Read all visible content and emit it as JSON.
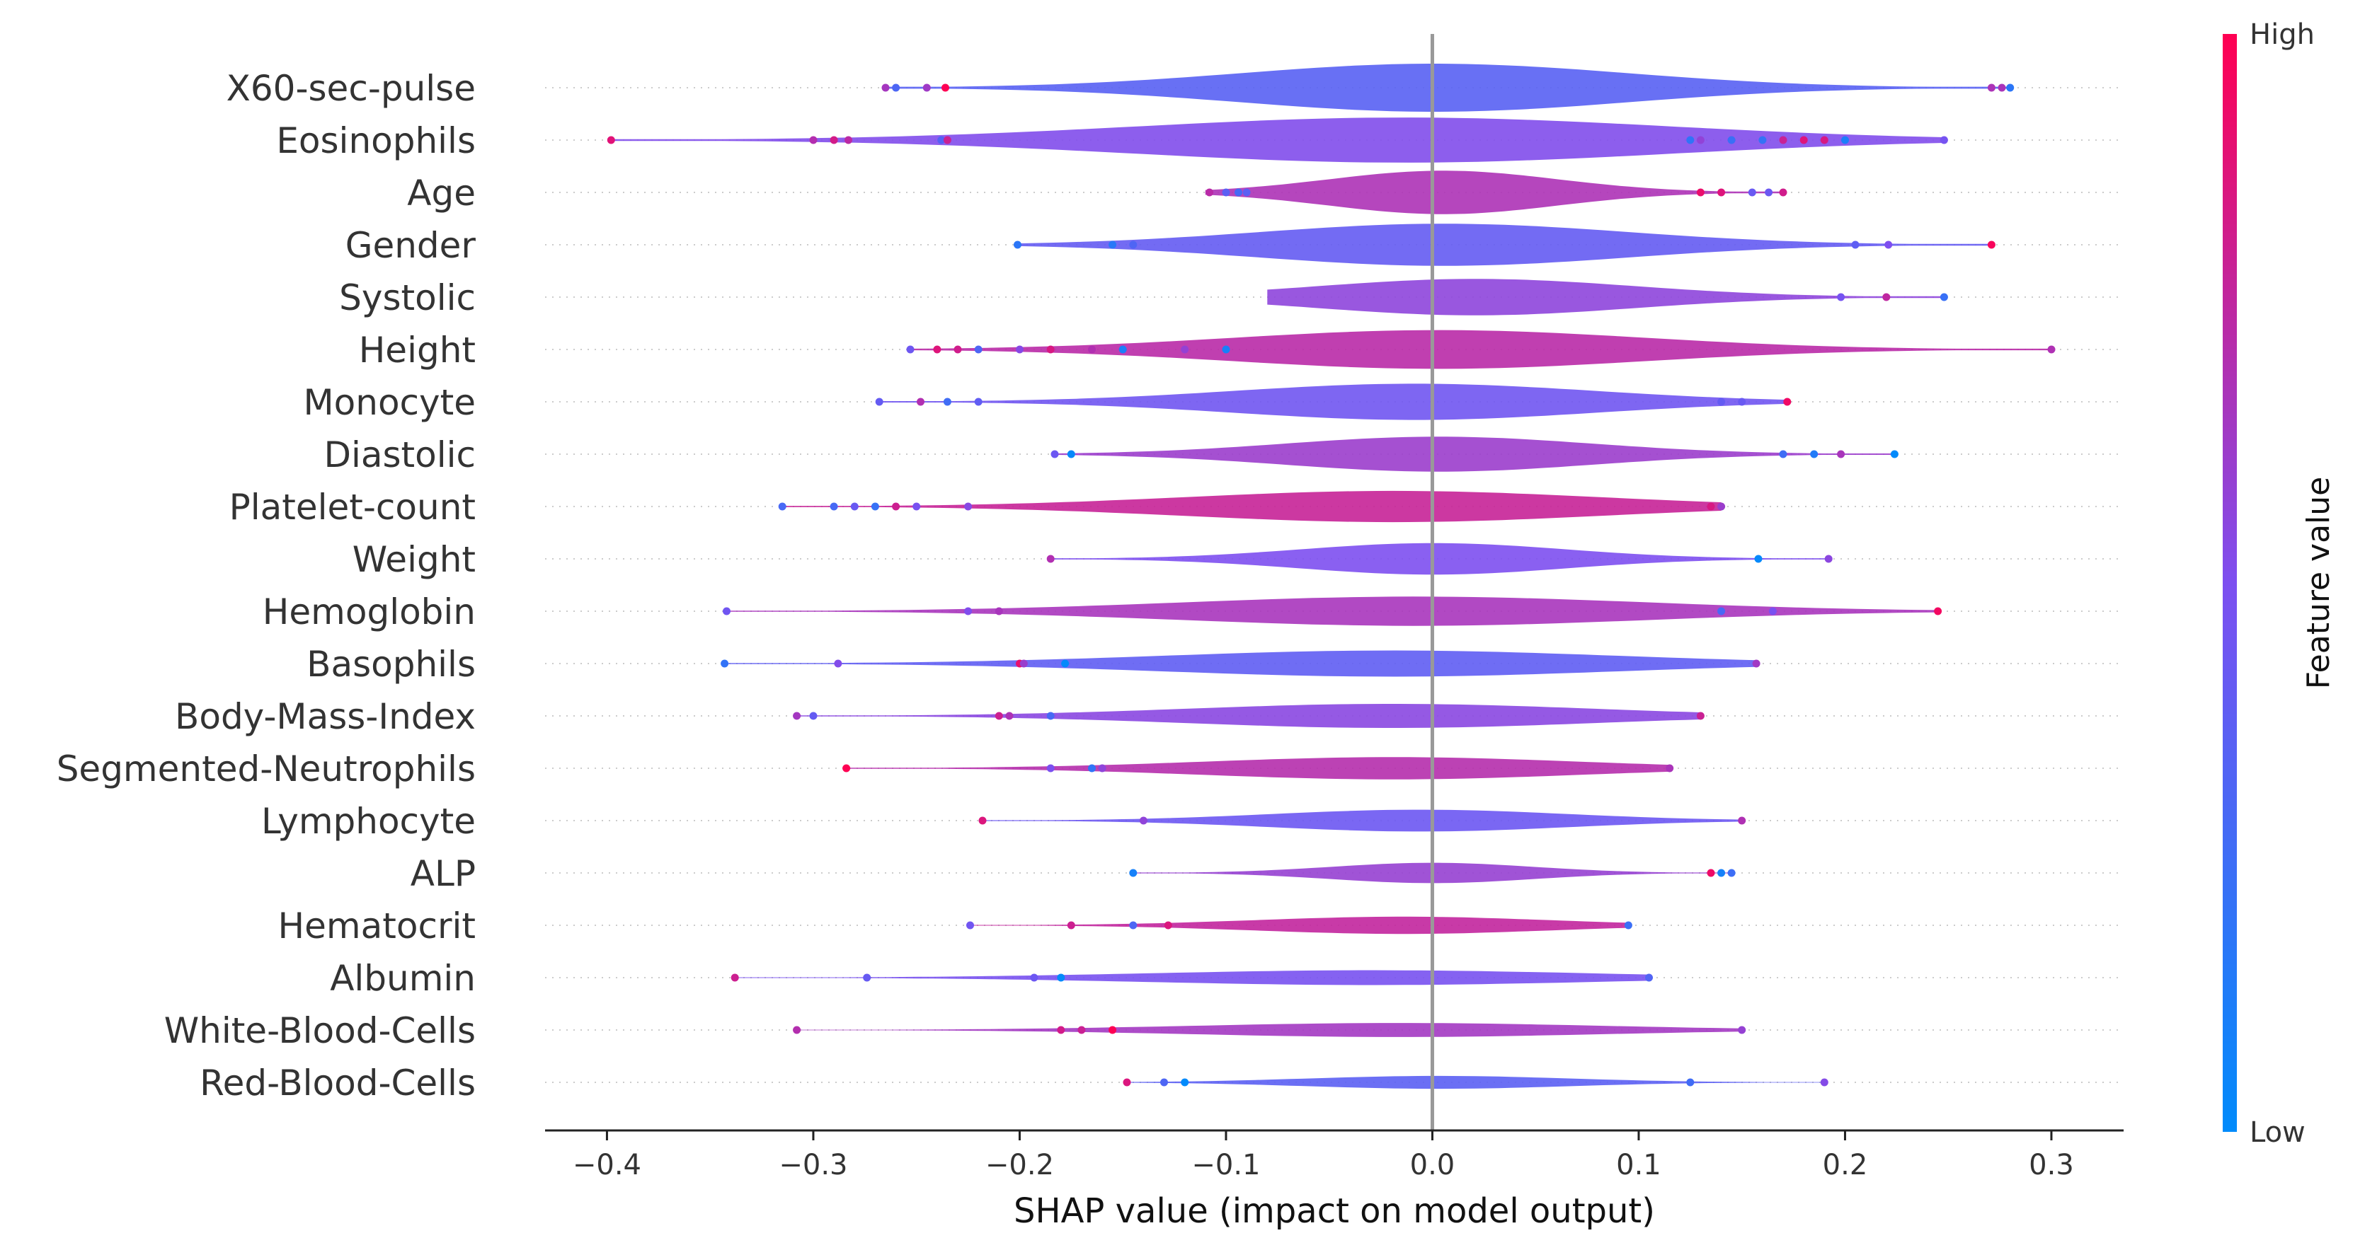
{
  "chart_data": {
    "type": "violin",
    "xlabel": "SHAP value (impact on model output)",
    "xlim": [
      -0.43,
      0.335
    ],
    "x_ticks": [
      -0.4,
      -0.3,
      -0.2,
      -0.1,
      0.0,
      0.1,
      0.2,
      0.3
    ],
    "x_tick_labels": [
      "−0.4",
      "−0.3",
      "−0.2",
      "−0.1",
      "0.0",
      "0.1",
      "0.2",
      "0.3"
    ],
    "colorbar": {
      "title": "Feature value",
      "high_label": "High",
      "low_label": "Low",
      "high_color": "#ff0052",
      "low_color": "#008bfb"
    },
    "features": [
      {
        "name": "X60-sec-pulse",
        "min": -0.265,
        "max": 0.28,
        "outliers": [
          -0.265,
          -0.26,
          -0.245,
          -0.236,
          0.271,
          0.276,
          0.28
        ]
      },
      {
        "name": "Eosinophils",
        "min": -0.398,
        "max": 0.248,
        "outliers": [
          -0.398,
          -0.3,
          -0.29,
          -0.283,
          -0.238,
          -0.235,
          0.125,
          0.13,
          0.145,
          0.16,
          0.17,
          0.18,
          0.19,
          0.2,
          0.248
        ]
      },
      {
        "name": "Age",
        "min": -0.11,
        "max": 0.17,
        "outliers": [
          -0.108,
          -0.1,
          -0.094,
          -0.09,
          0.13,
          0.14,
          0.155,
          0.163,
          0.17
        ]
      },
      {
        "name": "Gender",
        "min": -0.201,
        "max": 0.271,
        "outliers": [
          -0.201,
          -0.155,
          -0.145,
          0.205,
          0.221,
          0.271
        ]
      },
      {
        "name": "Systolic",
        "min": -0.08,
        "max": 0.248,
        "outliers": [
          0.198,
          0.22,
          0.248
        ]
      },
      {
        "name": "Height",
        "min": -0.253,
        "max": 0.3,
        "outliers": [
          -0.253,
          -0.24,
          -0.23,
          -0.22,
          -0.2,
          -0.185,
          -0.165,
          -0.15,
          -0.12,
          -0.1,
          0.3
        ]
      },
      {
        "name": "Monocyte",
        "min": -0.268,
        "max": 0.172,
        "outliers": [
          -0.268,
          -0.248,
          -0.235,
          -0.22,
          0.14,
          0.15,
          0.172
        ]
      },
      {
        "name": "Diastolic",
        "min": -0.183,
        "max": 0.224,
        "outliers": [
          -0.183,
          -0.175,
          0.17,
          0.185,
          0.198,
          0.224
        ]
      },
      {
        "name": "Platelet-count",
        "min": -0.315,
        "max": 0.14,
        "outliers": [
          -0.315,
          -0.29,
          -0.28,
          -0.27,
          -0.26,
          -0.25,
          -0.225,
          0.135,
          0.14
        ]
      },
      {
        "name": "Weight",
        "min": -0.185,
        "max": 0.192,
        "outliers": [
          -0.185,
          0.158,
          0.192
        ]
      },
      {
        "name": "Hemoglobin",
        "min": -0.342,
        "max": 0.245,
        "outliers": [
          -0.342,
          -0.225,
          -0.21,
          0.14,
          0.165,
          0.245
        ]
      },
      {
        "name": "Basophils",
        "min": -0.343,
        "max": 0.157,
        "outliers": [
          -0.343,
          -0.288,
          -0.2,
          -0.198,
          -0.178,
          0.157
        ]
      },
      {
        "name": "Body-Mass-Index",
        "min": -0.308,
        "max": 0.13,
        "outliers": [
          -0.308,
          -0.3,
          -0.21,
          -0.205,
          -0.185,
          0.13
        ]
      },
      {
        "name": "Segmented-Neutrophils",
        "min": -0.284,
        "max": 0.115,
        "outliers": [
          -0.284,
          -0.185,
          -0.165,
          -0.16,
          0.115
        ]
      },
      {
        "name": "Lymphocyte",
        "min": -0.218,
        "max": 0.15,
        "outliers": [
          -0.218,
          -0.14,
          0.15
        ]
      },
      {
        "name": "ALP",
        "min": -0.145,
        "max": 0.145,
        "outliers": [
          -0.145,
          0.135,
          0.14,
          0.145
        ]
      },
      {
        "name": "Hematocrit",
        "min": -0.224,
        "max": 0.095,
        "outliers": [
          -0.224,
          -0.175,
          -0.145,
          -0.128,
          0.095
        ]
      },
      {
        "name": "Albumin",
        "min": -0.338,
        "max": 0.105,
        "outliers": [
          -0.338,
          -0.274,
          -0.193,
          -0.18,
          0.105
        ]
      },
      {
        "name": "White-Blood-Cells",
        "min": -0.308,
        "max": 0.15,
        "outliers": [
          -0.308,
          -0.18,
          -0.17,
          -0.155,
          0.15
        ]
      },
      {
        "name": "Red-Blood-Cells",
        "min": -0.148,
        "max": 0.19,
        "outliers": [
          -0.148,
          -0.13,
          -0.12,
          0.125,
          0.19
        ]
      }
    ]
  }
}
